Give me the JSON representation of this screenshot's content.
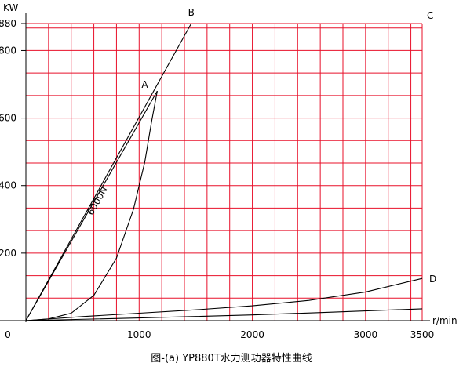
{
  "chart_data": {
    "type": "line",
    "title": "",
    "caption": "图-(a) YP880T水力测功器特性曲线",
    "ylabel": "KW",
    "xlabel": "r/min",
    "xlim": [
      0,
      3500
    ],
    "ylim": [
      0,
      880
    ],
    "x_ticks": [
      0,
      1000,
      2000,
      3000,
      3500
    ],
    "x_tick_labels": [
      "0",
      "1000",
      "2000",
      "3000",
      "3500"
    ],
    "y_ticks": [
      200,
      400,
      600,
      800,
      880
    ],
    "y_tick_labels": [
      "200",
      "400",
      "600",
      "800",
      "880"
    ],
    "grid": true,
    "x_grid_step": 200,
    "y_grid_step": 66.67,
    "series": [
      {
        "label": "B",
        "points": [
          [
            0,
            0
          ],
          [
            1460,
            880
          ]
        ]
      },
      {
        "label": "6000N",
        "points": [
          [
            0,
            0
          ],
          [
            1160,
            680
          ]
        ]
      },
      {
        "label": "A",
        "points": [
          [
            0,
            0
          ],
          [
            200,
            5
          ],
          [
            400,
            22
          ],
          [
            600,
            75
          ],
          [
            800,
            185
          ],
          [
            950,
            330
          ],
          [
            1050,
            470
          ],
          [
            1110,
            590
          ],
          [
            1160,
            680
          ]
        ]
      },
      {
        "label": "C",
        "points": [
          [
            3500,
            880
          ]
        ]
      },
      {
        "label": "D",
        "points": [
          [
            0,
            0
          ],
          [
            500,
            12
          ],
          [
            1000,
            22
          ],
          [
            1500,
            32
          ],
          [
            2000,
            44
          ],
          [
            2500,
            60
          ],
          [
            3000,
            85
          ],
          [
            3500,
            125
          ]
        ]
      },
      {
        "label": "",
        "points": [
          [
            0,
            0
          ],
          [
            1000,
            8
          ],
          [
            2000,
            17
          ],
          [
            2700,
            25
          ],
          [
            3500,
            35
          ]
        ]
      }
    ],
    "annotations": [
      "A",
      "B",
      "C",
      "D",
      "6000N"
    ]
  }
}
